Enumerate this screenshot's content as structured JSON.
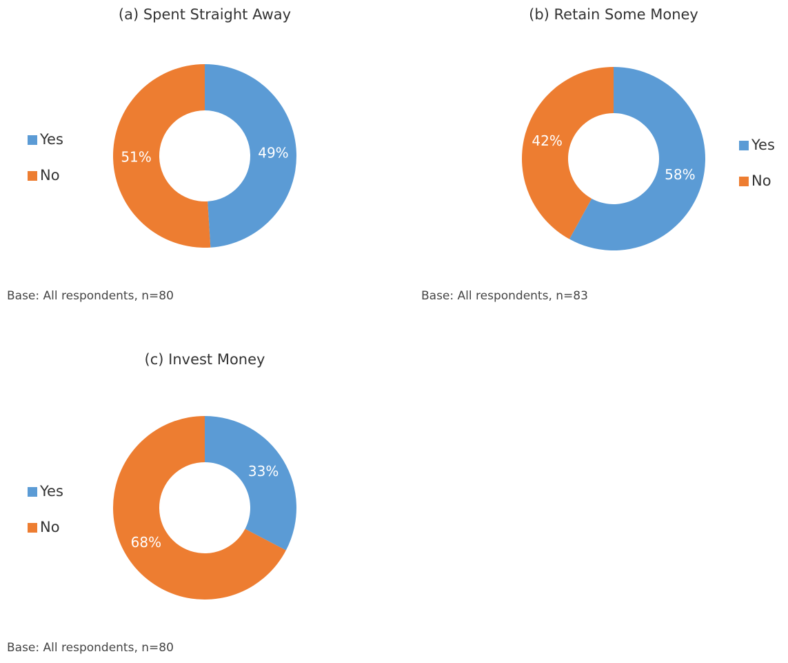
{
  "chart_data": [
    {
      "type": "donut",
      "title": "(a) Spent Straight Away",
      "categories": [
        "Yes",
        "No"
      ],
      "values": [
        49,
        51
      ],
      "value_labels": [
        "49%",
        "51%"
      ],
      "colors": [
        "#5b9bd5",
        "#ed7d31"
      ],
      "legend": "left",
      "note": "Base: All respondents, n=80"
    },
    {
      "type": "donut",
      "title": "(b) Retain Some Money",
      "categories": [
        "Yes",
        "No"
      ],
      "values": [
        58,
        42
      ],
      "value_labels": [
        "58%",
        "42%"
      ],
      "colors": [
        "#5b9bd5",
        "#ed7d31"
      ],
      "legend": "right",
      "note": "Base: All respondents, n=83"
    },
    {
      "type": "donut",
      "title": "(c) Invest Money",
      "categories": [
        "Yes",
        "No"
      ],
      "values": [
        33,
        68
      ],
      "value_labels": [
        "33%",
        "68%"
      ],
      "colors": [
        "#5b9bd5",
        "#ed7d31"
      ],
      "legend": "left",
      "note": "Base: All respondents, n=80"
    }
  ]
}
